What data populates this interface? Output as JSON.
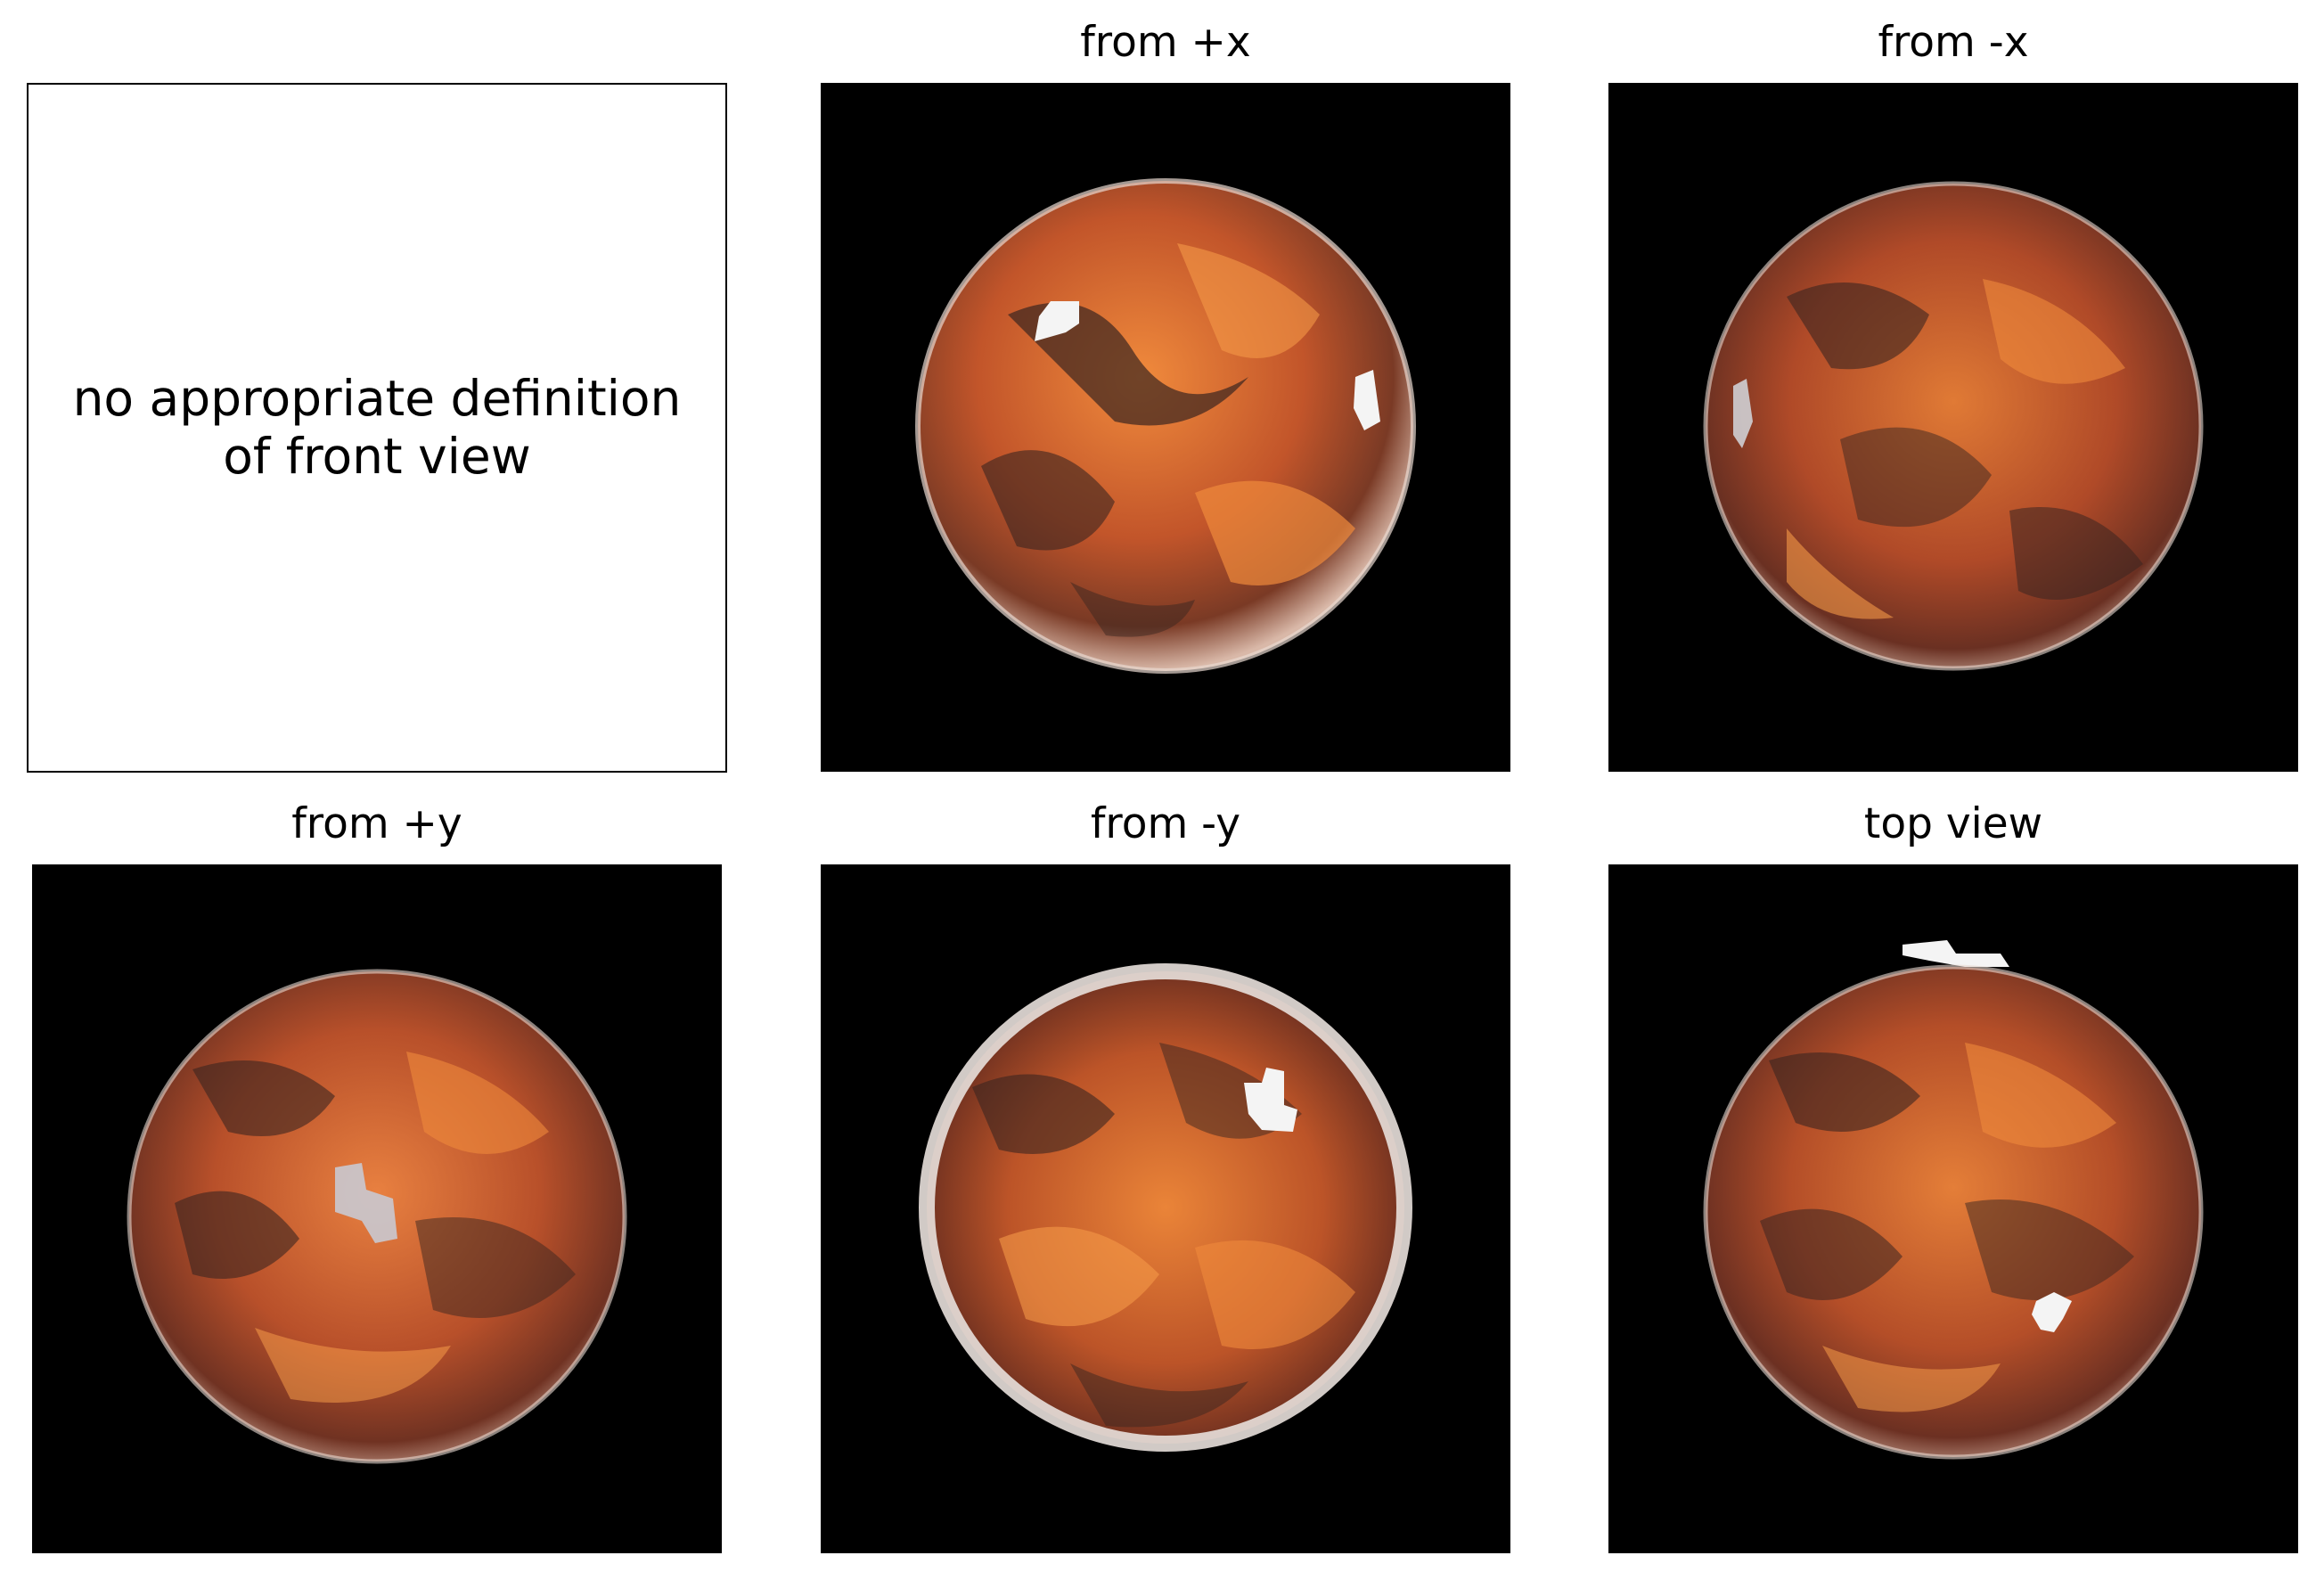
{
  "panels": [
    {
      "id": "front",
      "title": "",
      "message": "no appropriate definition\nof front view",
      "kind": "empty"
    },
    {
      "id": "pos-x",
      "title": "from +x",
      "kind": "render"
    },
    {
      "id": "neg-x",
      "title": "from -x",
      "kind": "render"
    },
    {
      "id": "pos-y",
      "title": "from +y",
      "kind": "render"
    },
    {
      "id": "neg-y",
      "title": "from -y",
      "kind": "render"
    },
    {
      "id": "top",
      "title": "top view",
      "kind": "render"
    }
  ],
  "colors": {
    "background": "#000000",
    "sphere_base": "#c2552a",
    "sphere_light": "#f08a3c",
    "sphere_dark": "#3a2520",
    "rim": "#e8d8d0"
  }
}
